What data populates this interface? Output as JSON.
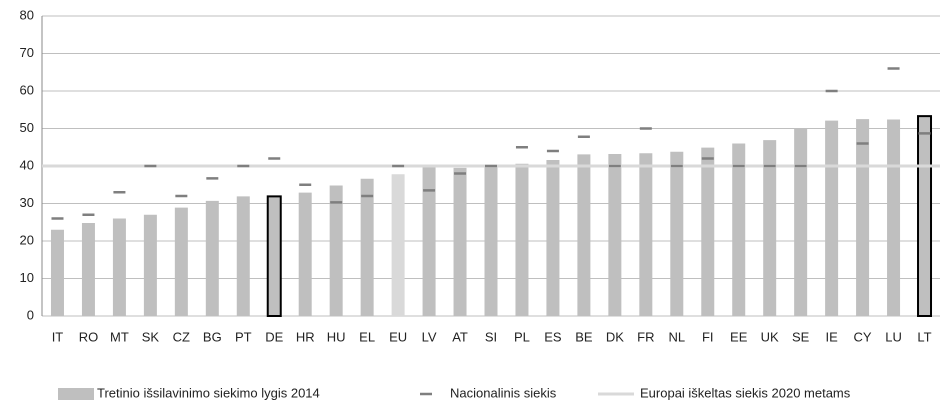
{
  "chart_data": {
    "type": "bar",
    "categories": [
      "IT",
      "RO",
      "MT",
      "SK",
      "CZ",
      "BG",
      "PT",
      "DE",
      "HR",
      "HU",
      "EL",
      "EU",
      "LV",
      "AT",
      "SI",
      "PL",
      "ES",
      "BE",
      "DK",
      "FR",
      "NL",
      "FI",
      "EE",
      "UK",
      "SE",
      "IE",
      "CY",
      "LU",
      "LT"
    ],
    "series": [
      {
        "name": "Tretinio išsilavinimo siekimo lygis 2014",
        "color": "#bfbfbf",
        "values": [
          23,
          24.8,
          26,
          27,
          28.9,
          30.7,
          31.9,
          31.9,
          32.9,
          34.8,
          36.6,
          37.8,
          39.6,
          39.5,
          39.7,
          40.6,
          41.6,
          43.1,
          43.2,
          43.4,
          43.8,
          44.9,
          46,
          46.9,
          49.9,
          52.1,
          52.5,
          52.4,
          53.3
        ]
      },
      {
        "name": "Nacionalinis siekis",
        "color": "#7f7f7f",
        "marker": "dash",
        "values": [
          26,
          27,
          33,
          40,
          32,
          36.7,
          40,
          42,
          35,
          30.3,
          32,
          40,
          33.5,
          38,
          40,
          45,
          44,
          47.8,
          40,
          50,
          40,
          42,
          40,
          40,
          40,
          60,
          46,
          66,
          48.7
        ]
      }
    ],
    "reference_line": {
      "name": "Europai iškeltas siekis 2020 metams",
      "value": 40,
      "color": "#d9d9d9"
    },
    "outlined_categories": [
      "DE",
      "LT"
    ],
    "outline_color": "#000000",
    "reference_category": "EU",
    "reference_category_color": "#d9d9d9",
    "ylim": [
      0,
      80
    ],
    "yticks": [
      0,
      10,
      20,
      30,
      40,
      50,
      60,
      70,
      80
    ],
    "grid": true
  }
}
